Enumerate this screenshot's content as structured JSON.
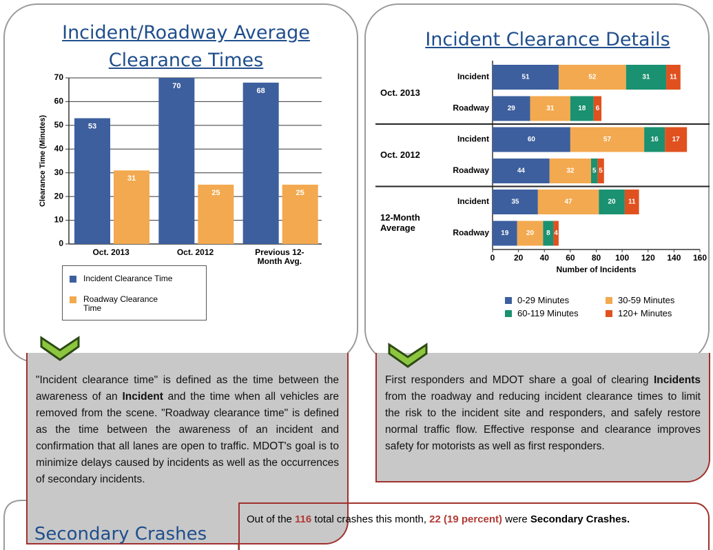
{
  "chart_data": [
    {
      "type": "bar",
      "title": "Incident/Roadway Average Clearance Times",
      "y_label": "Clearance Time (Minutes)",
      "categories": [
        "Oct. 2013",
        "Oct. 2012",
        "Previous 12-Month Avg."
      ],
      "series": [
        {
          "name": "Incident Clearance Time",
          "color": "#3d5f9e",
          "values": [
            53,
            70,
            68
          ]
        },
        {
          "name": "Roadway Clearance Time",
          "color": "#f3a94f",
          "values": [
            31,
            25,
            25
          ]
        }
      ],
      "ylim": [
        0,
        70
      ],
      "yticks": [
        0,
        10,
        20,
        30,
        40,
        50,
        60,
        70
      ],
      "grid": true
    },
    {
      "type": "stacked_barh",
      "title": "Incident Clearance Details",
      "x_label": "Number of Incidents",
      "groups": [
        "Oct. 2013",
        "Oct. 2012",
        "12-Month Average"
      ],
      "categories": [
        "Incident",
        "Roadway",
        "Incident",
        "Roadway",
        "Incident",
        "Roadway"
      ],
      "series": [
        {
          "name": "0-29 Minutes",
          "color": "#3d5f9e",
          "values": [
            51,
            29,
            60,
            44,
            35,
            19
          ]
        },
        {
          "name": "30-59 Minutes",
          "color": "#f3a94f",
          "values": [
            52,
            31,
            57,
            32,
            47,
            20
          ]
        },
        {
          "name": "60-119 Minutes",
          "color": "#1a9170",
          "values": [
            31,
            18,
            16,
            5,
            20,
            8
          ]
        },
        {
          "name": "120+ Minutes",
          "color": "#e0511f",
          "values": [
            11,
            6,
            17,
            5,
            11,
            4
          ]
        }
      ],
      "xlim": [
        0,
        160
      ],
      "xticks": [
        0,
        20,
        40,
        60,
        80,
        100,
        120,
        140,
        160
      ]
    }
  ],
  "left_note": {
    "runs": [
      "\"Incident clearance time\" is defined as the time between the awareness of an ",
      "Incident",
      " and the time when all vehicles are removed from the scene. \"Roadway clearance time\" is defined as the time between the awareness of an incident and confirmation that all lanes are open to traffic. MDOT's goal is to minimize delays caused by incidents as well as the occurrences of secondary incidents."
    ]
  },
  "right_note": {
    "runs": [
      "First responders and MDOT share a goal of clearing ",
      "Incidents",
      " from the roadway and reducing incident clearance times to limit the risk to the incident site and responders, and safely restore normal traffic flow. Effective response and clearance improves safety for motorists as well as first responders."
    ]
  },
  "secondary_crashes": {
    "title": "Secondary Crashes",
    "runs": [
      "Out of the ",
      "116",
      " total crashes this month, ",
      "22 (19 percent)",
      " were ",
      "Secondary Crashes."
    ]
  }
}
